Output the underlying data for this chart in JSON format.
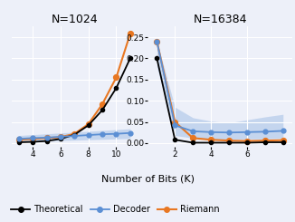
{
  "title_left": "N=1024",
  "title_right": "N=16384",
  "xlabel": "Number of Bits (K)",
  "legend_entries": [
    "Theoretical",
    "Decoder",
    "Riemann"
  ],
  "colors": {
    "theoretical": "#000000",
    "decoder": "#5b8fd4",
    "riemann": "#e87722"
  },
  "left": {
    "x": [
      3,
      4,
      5,
      6,
      7,
      8,
      9,
      10,
      11
    ],
    "theoretical": [
      0.002,
      0.003,
      0.005,
      0.01,
      0.02,
      0.042,
      0.078,
      0.13,
      0.2
    ],
    "riemann": [
      0.008,
      0.01,
      0.012,
      0.014,
      0.022,
      0.045,
      0.092,
      0.155,
      0.258
    ],
    "decoder": [
      0.01,
      0.012,
      0.013,
      0.015,
      0.017,
      0.019,
      0.021,
      0.022,
      0.024
    ],
    "decoder_low": [
      0.003,
      0.004,
      0.005,
      0.006,
      0.007,
      0.008,
      0.009,
      0.01,
      0.011
    ],
    "decoder_high": [
      0.018,
      0.02,
      0.022,
      0.024,
      0.026,
      0.028,
      0.03,
      0.032,
      0.034
    ],
    "xticks": [
      4,
      6,
      8,
      10
    ],
    "xlim": [
      2.5,
      11.5
    ],
    "ylim": [
      -0.008,
      0.275
    ]
  },
  "right": {
    "x": [
      1,
      2,
      3,
      4,
      5,
      6,
      7,
      8
    ],
    "theoretical": [
      0.2,
      0.008,
      0.001,
      0.001,
      0.001,
      0.001,
      0.002,
      0.002
    ],
    "riemann": [
      0.24,
      0.05,
      0.012,
      0.008,
      0.006,
      0.005,
      0.006,
      0.007
    ],
    "decoder": [
      0.24,
      0.042,
      0.028,
      0.026,
      0.025,
      0.026,
      0.027,
      0.029
    ],
    "decoder_low": [
      0.18,
      0.018,
      0.012,
      0.01,
      0.009,
      0.01,
      0.01,
      0.012
    ],
    "decoder_high": [
      0.24,
      0.085,
      0.06,
      0.052,
      0.048,
      0.055,
      0.062,
      0.068
    ],
    "xticks": [
      2,
      4,
      6
    ],
    "xlim": [
      0.5,
      8.5
    ],
    "ylim": [
      -0.008,
      0.275
    ],
    "yticks": [
      0.0,
      0.05,
      0.1,
      0.15,
      0.2,
      0.25
    ]
  },
  "background": "#edf0f9",
  "grid_color": "#ffffff",
  "figure_bg": "#edf0f9"
}
